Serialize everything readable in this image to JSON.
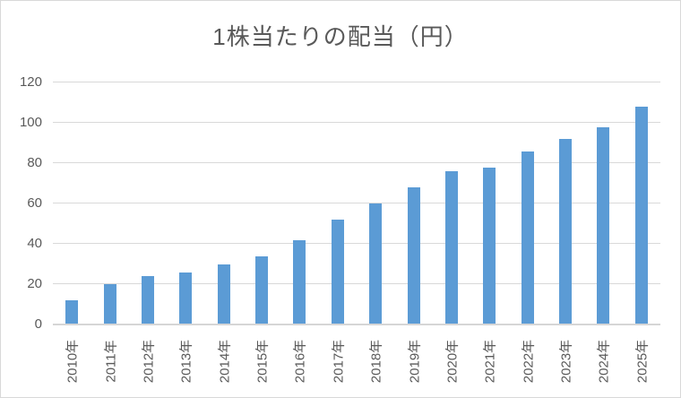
{
  "chart_data": {
    "type": "bar",
    "title": "1株当たりの配当（円）",
    "categories": [
      "2010年",
      "2011年",
      "2012年",
      "2013年",
      "2014年",
      "2015年",
      "2016年",
      "2017年",
      "2018年",
      "2019年",
      "2020年",
      "2021年",
      "2022年",
      "2023年",
      "2024年",
      "2025年"
    ],
    "values": [
      12,
      20,
      24,
      26,
      30,
      34,
      42,
      52,
      60,
      68,
      76,
      78,
      86,
      92,
      98,
      108
    ],
    "xlabel": "",
    "ylabel": "",
    "ylim": [
      0,
      120
    ],
    "yticks": [
      0,
      20,
      40,
      60,
      80,
      100,
      120
    ],
    "grid": true,
    "legend_position": "none",
    "x_label_rotation": -90,
    "colors": {
      "bar": "#5b9bd5",
      "gridline": "#d9d9d9",
      "axis_line": "#d6d6d6",
      "text": "#595959",
      "frame_border": "#d9d9d9",
      "background": "#ffffff"
    }
  }
}
